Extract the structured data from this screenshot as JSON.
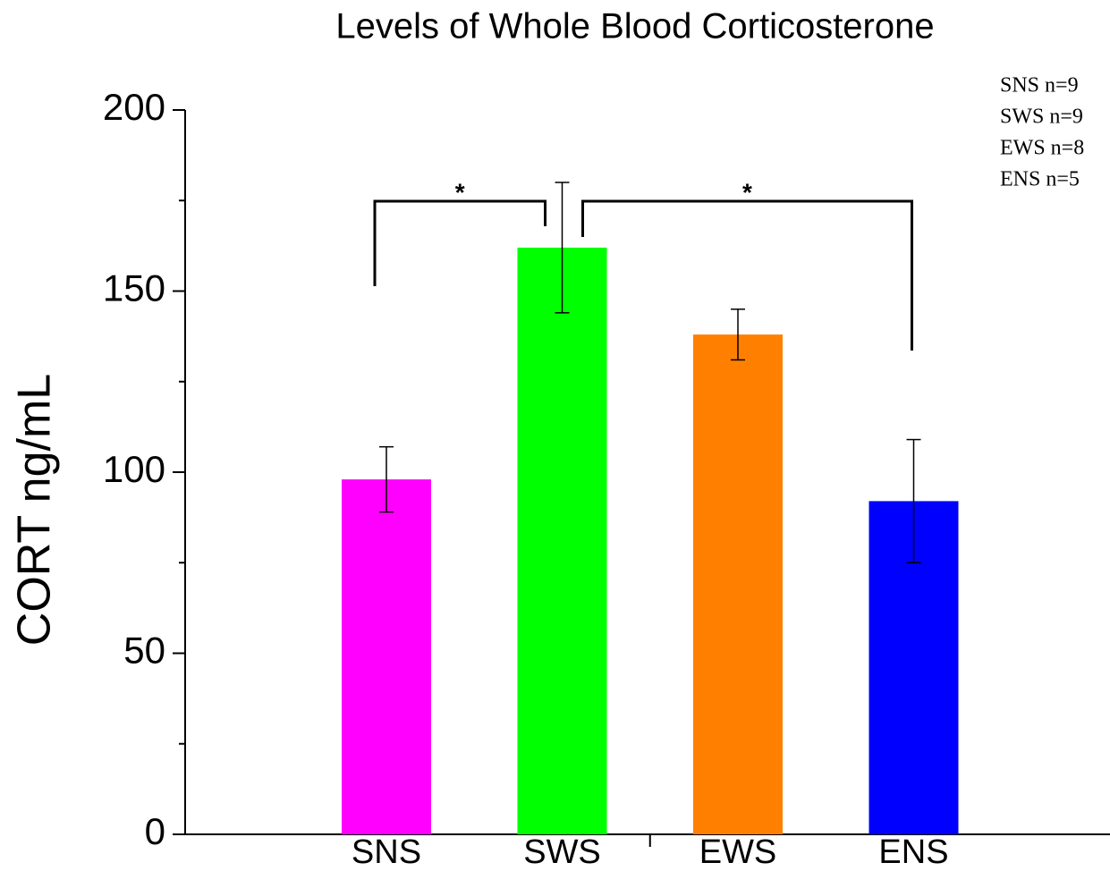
{
  "chart_data": {
    "type": "bar",
    "title": "Levels of Whole Blood Corticosterone",
    "y_label": "CORT ng/mL",
    "categories": [
      "SNS",
      "SWS",
      "EWS",
      "ENS"
    ],
    "values": [
      98,
      162,
      138,
      92
    ],
    "errors": [
      9,
      18,
      7,
      17
    ],
    "colors": [
      "#ff00ff",
      "#00ff00",
      "#ff8000",
      "#0000ff"
    ],
    "ylim": [
      0,
      200
    ],
    "yticks": [
      0,
      50,
      100,
      150,
      200
    ],
    "minor_yticks": [
      25,
      75,
      125,
      175
    ],
    "grid": false,
    "significance": [
      {
        "from": 0,
        "to": 1,
        "label": "*"
      },
      {
        "from": 1,
        "to": 3,
        "label": "*"
      }
    ],
    "notes": [
      "SNS n=9",
      "SWS n=9",
      "EWS n=8",
      "ENS n=5"
    ]
  }
}
